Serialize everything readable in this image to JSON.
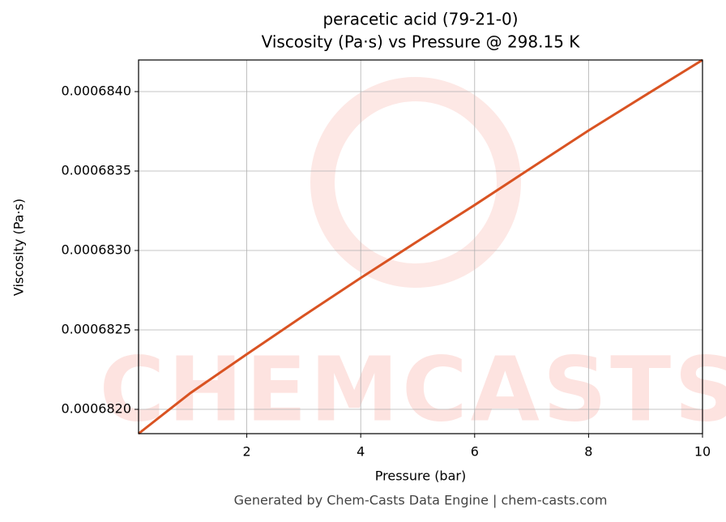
{
  "chart_data": {
    "type": "line",
    "title": "peracetic acid (79-21-0)",
    "subtitle": "Viscosity (Pa·s) vs Pressure @ 298.15 K",
    "x_label": "Pressure (bar)",
    "y_label": "Viscosity (Pa·s)",
    "footer": "Generated by Chem-Casts Data Engine | chem-casts.com",
    "watermark": "CHEMCASTS",
    "x": [
      0.1,
      1,
      2,
      3,
      4,
      5,
      6,
      7,
      8,
      9,
      10
    ],
    "series": [
      {
        "name": "Viscosity",
        "color": "#d95322",
        "values": [
          0.0006818469,
          0.0006821,
          0.000682347,
          0.00068259,
          0.000682827,
          0.000683058,
          0.000683286,
          0.000683521,
          0.000683755,
          0.000683978,
          0.000684199
        ]
      }
    ],
    "xlim": [
      0.1,
      10
    ],
    "ylim": [
      0.0006818469,
      0.000684199
    ],
    "xticks": [
      2,
      4,
      6,
      8,
      10
    ],
    "yticks": [
      {
        "value": 0.000682,
        "label": "0.0006820"
      },
      0.0006825,
      {
        "value": 0.000683,
        "label": "0.0006830"
      },
      0.0006835,
      {
        "value": 0.000684,
        "label": "0.0006840"
      }
    ],
    "grid": true
  }
}
